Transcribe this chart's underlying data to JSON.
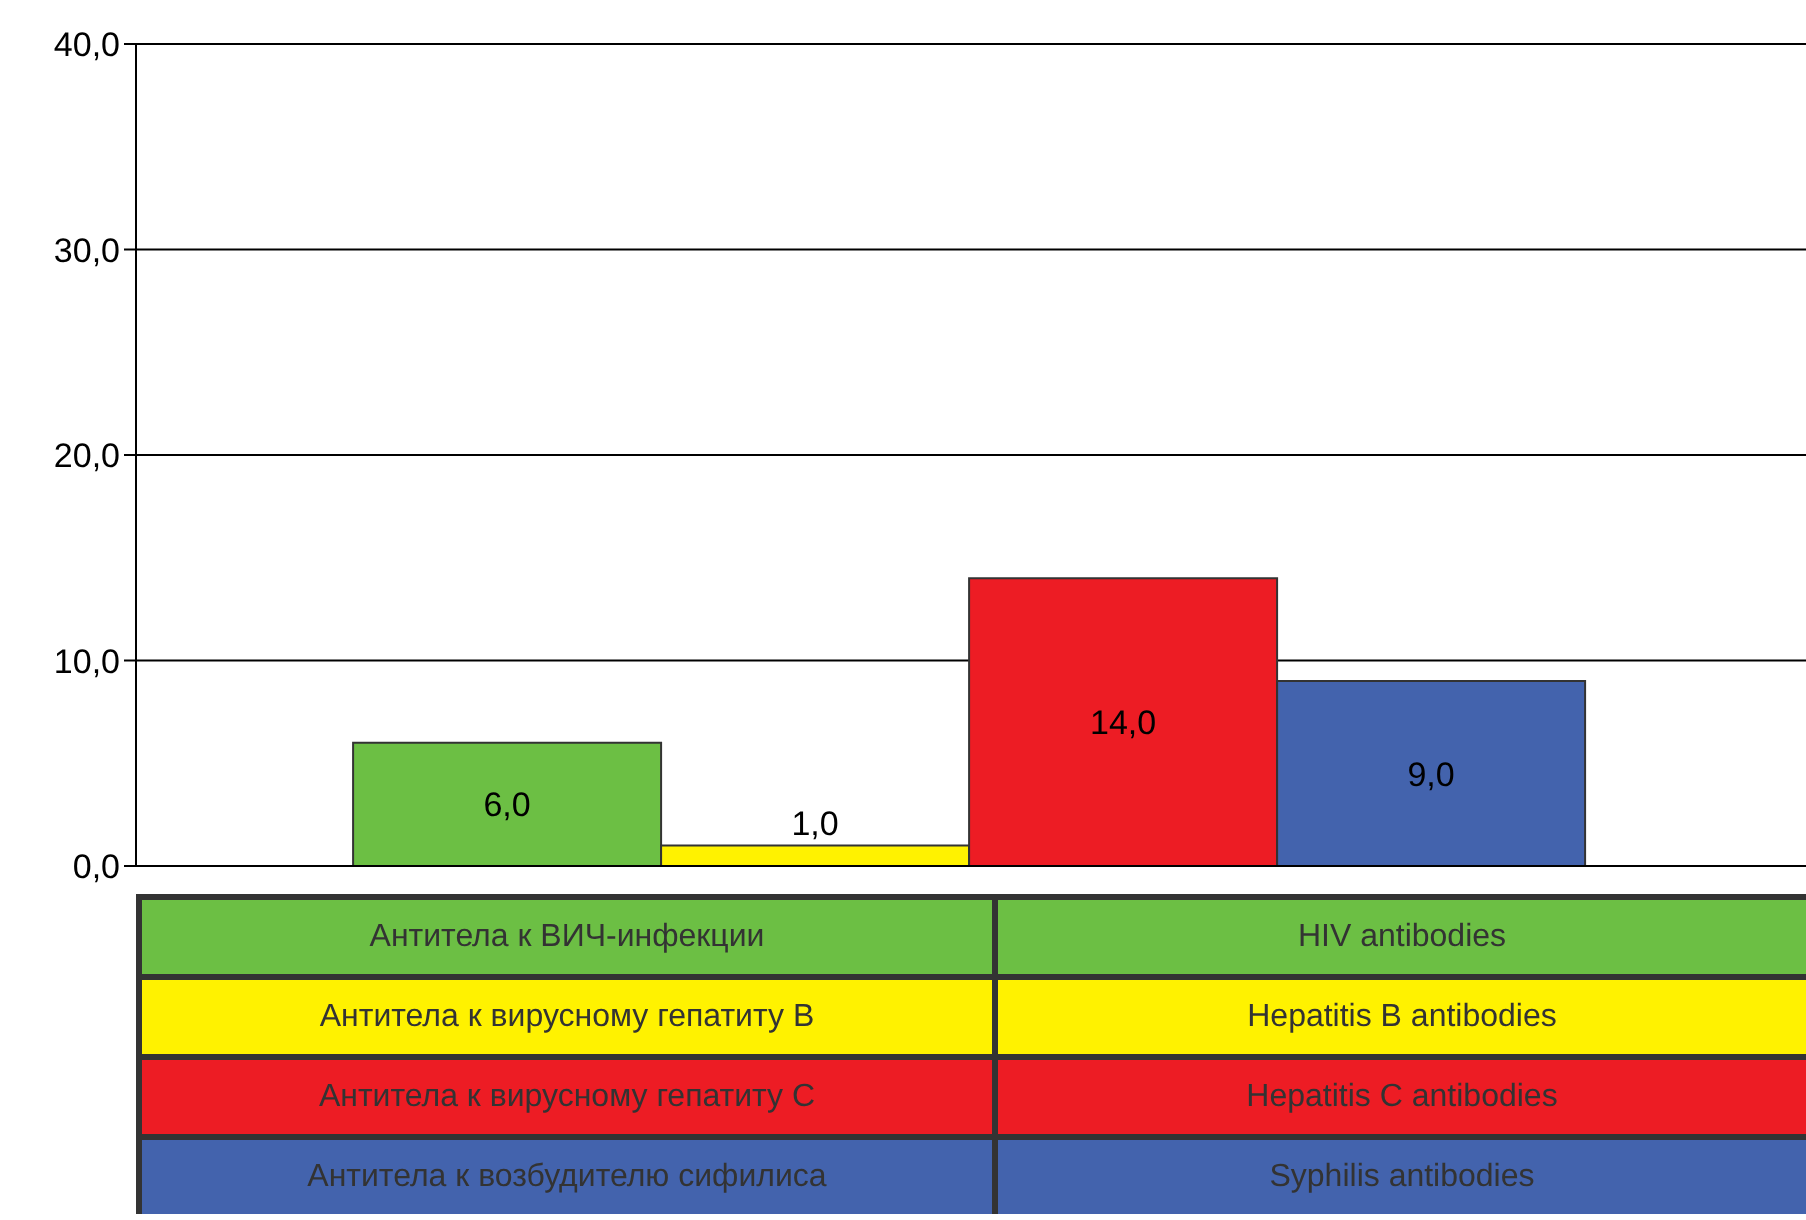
{
  "chart_data": {
    "type": "bar",
    "categories": [
      null
    ],
    "series": [
      {
        "name": "Антитела к ВИЧ-инфекции",
        "color": "#6cbf44",
        "values": [
          6.0
        ],
        "value_labels": [
          "6,0"
        ]
      },
      {
        "name": "Антитела к вирусному гепатиту B",
        "color": "#fff200",
        "values": [
          1.0
        ],
        "value_labels": [
          "1,0"
        ]
      },
      {
        "name": "Антитела к вирусному гепатиту C",
        "color": "#ed1c24",
        "values": [
          14.0
        ],
        "value_labels": [
          "14,0"
        ]
      },
      {
        "name": "Антитела к возбудителю сифилиса",
        "color": "#4363ad",
        "values": [
          9.0
        ],
        "value_labels": [
          "9,0"
        ]
      }
    ],
    "annotations": [
      "HIV antibodies",
      "Hepatitis B antibodies",
      "Hepatitis C antibodies",
      "Syphilis antibodies"
    ],
    "ylim": [
      0,
      40
    ],
    "yticks": [
      {
        "value": 0,
        "label": "0,0"
      },
      {
        "value": 10,
        "label": "10,0"
      },
      {
        "value": 20,
        "label": "20,0"
      },
      {
        "value": 30,
        "label": "30,0"
      },
      {
        "value": 40,
        "label": "40,0"
      }
    ],
    "grid": "y",
    "legend": "bottom"
  }
}
